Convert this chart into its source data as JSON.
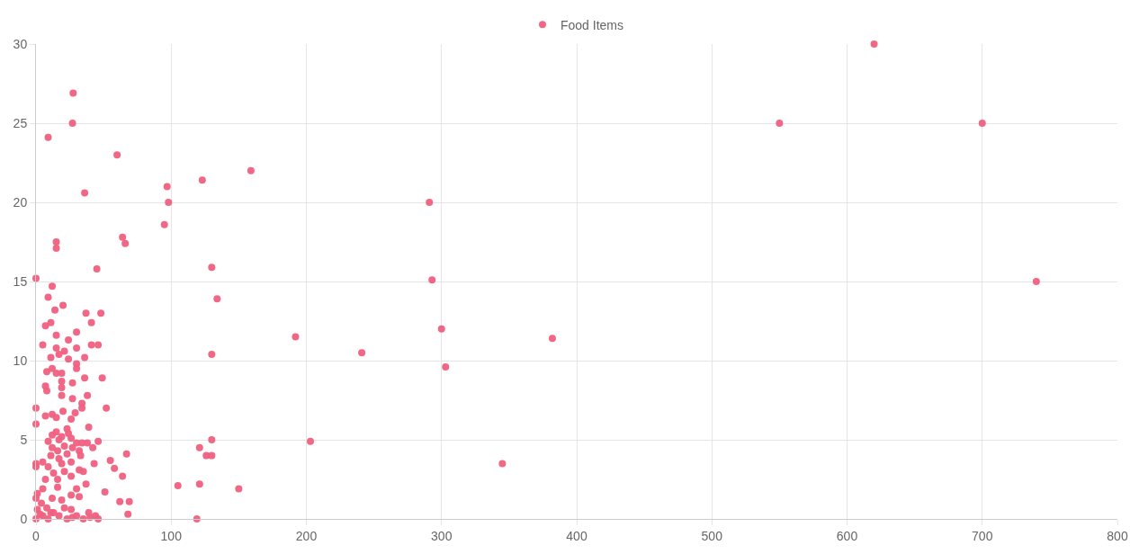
{
  "chart_data": {
    "type": "scatter",
    "marker": "circle",
    "grid": true,
    "legend": "top",
    "xlim": [
      0,
      800
    ],
    "xticks": [
      0,
      100,
      200,
      300,
      400,
      500,
      600,
      700,
      800
    ],
    "ylim": [
      0,
      30
    ],
    "yticks": [
      0,
      5,
      10,
      15,
      20,
      25,
      30
    ],
    "series": [
      {
        "name": "Food Items",
        "color": "#f0607f",
        "x": [
          620,
          550,
          700,
          740,
          291,
          293,
          300,
          303,
          241,
          382,
          345,
          203,
          192,
          159,
          123,
          97,
          98,
          95,
          130,
          134,
          130,
          130,
          126,
          130,
          121,
          121,
          105,
          150,
          119,
          64,
          66,
          60,
          27.5,
          27,
          9,
          36,
          45,
          15,
          15,
          0,
          9,
          12,
          20,
          14,
          37,
          48,
          7,
          11,
          41,
          30,
          15,
          24,
          5,
          41,
          46,
          15,
          30,
          21,
          11,
          17,
          36,
          24,
          30,
          30,
          12,
          8,
          15,
          19,
          49,
          36,
          19,
          19,
          7,
          27,
          8,
          38,
          19,
          27,
          0,
          34,
          34,
          52,
          20,
          29,
          12,
          7,
          15,
          26,
          0,
          39,
          23,
          15,
          24,
          12,
          19,
          26,
          17,
          46,
          9,
          30,
          34,
          38,
          21,
          12,
          42,
          27,
          16,
          32,
          67,
          23,
          11,
          33,
          17,
          55,
          26,
          5,
          0,
          43,
          19,
          0,
          58,
          9,
          32,
          21,
          13,
          35,
          64,
          26,
          7,
          16,
          37,
          30,
          16,
          5,
          51,
          1,
          26,
          32,
          12,
          0,
          19,
          62,
          69,
          4,
          8,
          21,
          26,
          1,
          13,
          39,
          68,
          44,
          5,
          17,
          30,
          0,
          9,
          23,
          35,
          46,
          40,
          27,
          3,
          11
        ],
        "values": [
          30,
          25,
          25,
          15,
          20,
          15.1,
          12,
          9.6,
          10.5,
          11.4,
          3.5,
          4.9,
          11.5,
          22,
          21.4,
          21,
          20,
          18.6,
          15.9,
          13.9,
          10.4,
          5,
          4,
          4,
          4.5,
          2.2,
          2.1,
          1.9,
          0,
          17.8,
          17.4,
          23,
          26.9,
          25,
          24.1,
          20.6,
          15.8,
          17.5,
          17.1,
          15.2,
          14,
          14.7,
          13.5,
          13.2,
          13,
          13,
          12.2,
          12.4,
          12.4,
          11.8,
          11.6,
          11.3,
          11,
          11,
          11,
          10.8,
          10.8,
          10.6,
          10.2,
          10.4,
          10.2,
          10.1,
          9.8,
          9.5,
          9.5,
          9.3,
          9.2,
          9.2,
          8.9,
          8.9,
          8.7,
          8.3,
          8.4,
          8.6,
          8.1,
          7.8,
          7.8,
          7.6,
          7,
          7.3,
          7,
          7,
          6.8,
          6.7,
          6.6,
          6.5,
          6.4,
          6.3,
          6,
          5.8,
          5.7,
          5.5,
          5.4,
          5.3,
          5.2,
          5.1,
          5,
          4.9,
          4.9,
          4.8,
          4.8,
          4.8,
          4.6,
          4.5,
          4.5,
          4.5,
          4.3,
          4.3,
          4.1,
          4.1,
          4,
          4,
          3.8,
          3.7,
          3.6,
          3.6,
          3.5,
          3.5,
          3.5,
          3.3,
          3.2,
          3.3,
          3.1,
          3,
          2.9,
          3,
          2.7,
          2.7,
          2.5,
          2.5,
          2.2,
          1.9,
          2,
          1.9,
          1.7,
          1.6,
          1.5,
          1.4,
          1.3,
          1.3,
          1.2,
          1.1,
          1.1,
          1,
          0.7,
          0.7,
          0.6,
          0.6,
          0.4,
          0.4,
          0.3,
          0.2,
          0.2,
          0.2,
          0.2,
          0,
          0,
          0,
          0,
          0,
          0.1,
          0.1,
          0.3,
          0.4
        ]
      }
    ]
  }
}
